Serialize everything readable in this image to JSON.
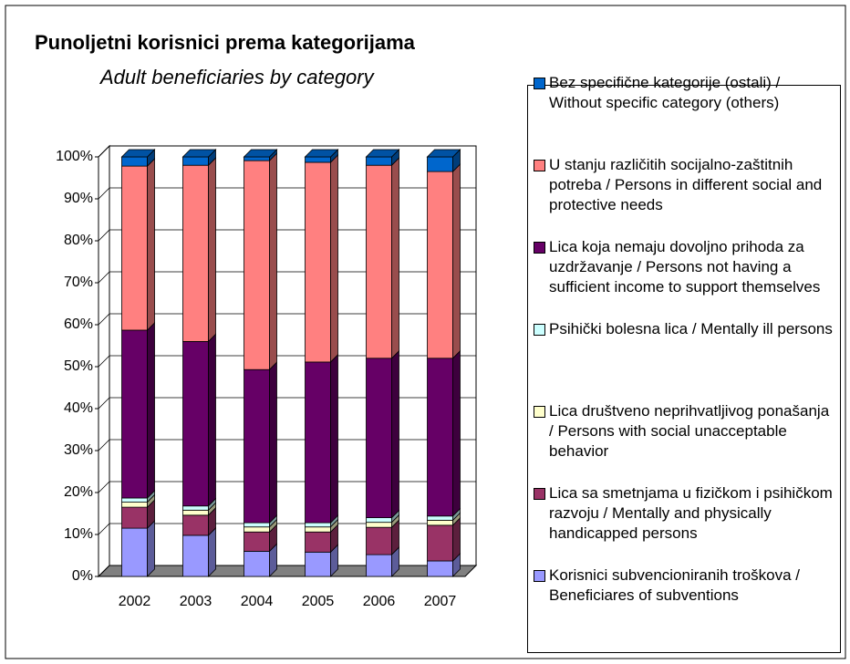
{
  "chart_data": {
    "type": "bar3d_stacked",
    "title": "Punoljetni korisnici prema kategorijama",
    "subtitle": "Adult beneficiaries by category",
    "categories": [
      "2002",
      "2003",
      "2004",
      "2005",
      "2006",
      "2007"
    ],
    "ylim": [
      0,
      100
    ],
    "yticks": [
      {
        "value": 0,
        "label": "0%"
      },
      {
        "value": 10,
        "label": "10%"
      },
      {
        "value": 20,
        "label": "20%"
      },
      {
        "value": 30,
        "label": "30%"
      },
      {
        "value": 40,
        "label": "40%"
      },
      {
        "value": 50,
        "label": "50%"
      },
      {
        "value": 60,
        "label": "60%"
      },
      {
        "value": 70,
        "label": "70%"
      },
      {
        "value": 80,
        "label": "80%"
      },
      {
        "value": 90,
        "label": "90%"
      },
      {
        "value": 100,
        "label": "100%"
      }
    ],
    "grid": true,
    "series": [
      {
        "name": "Korisnici subvencioniranih troškova / Beneficiares of subventions",
        "color": "#9999ff",
        "values": [
          11.5,
          9.8,
          6,
          5.8,
          5.2,
          3.7
        ]
      },
      {
        "name": "Lica sa smetnjama u fizičkom i psihičkom razvoju / Mentally and physically handicapped persons",
        "color": "#993366",
        "values": [
          5,
          4.8,
          4.6,
          4.8,
          6.5,
          8.5
        ]
      },
      {
        "name": "Lica društveno neprihvatljivog ponašanja / Persons with social unacceptable behavior",
        "color": "#ffffcc",
        "values": [
          1.2,
          1.2,
          1.2,
          1.2,
          1.2,
          1.2
        ]
      },
      {
        "name": "Psihički bolesna lica / Mentally ill persons",
        "color": "#ccffff",
        "values": [
          1,
          1,
          1,
          1,
          1.1,
          1
        ]
      },
      {
        "name": "Lica koja nemaju dovoljno prihoda za uzdržavanje / Persons not having a sufficient income to support themselves",
        "color": "#660066",
        "values": [
          40,
          39.2,
          36.5,
          38.3,
          38,
          37.6
        ]
      },
      {
        "name": "U stanju različitih socijalno-zaštitnih potreba / Persons in different social and protective needs",
        "color": "#ff8080",
        "values": [
          39.1,
          42,
          49.8,
          47.6,
          46,
          44.5
        ]
      },
      {
        "name": "Bez specifične kategorije (ostali) / Without specific category (others)",
        "color": "#0066cc",
        "values": [
          2.2,
          2,
          0.9,
          1.3,
          2,
          3.5
        ]
      }
    ]
  }
}
